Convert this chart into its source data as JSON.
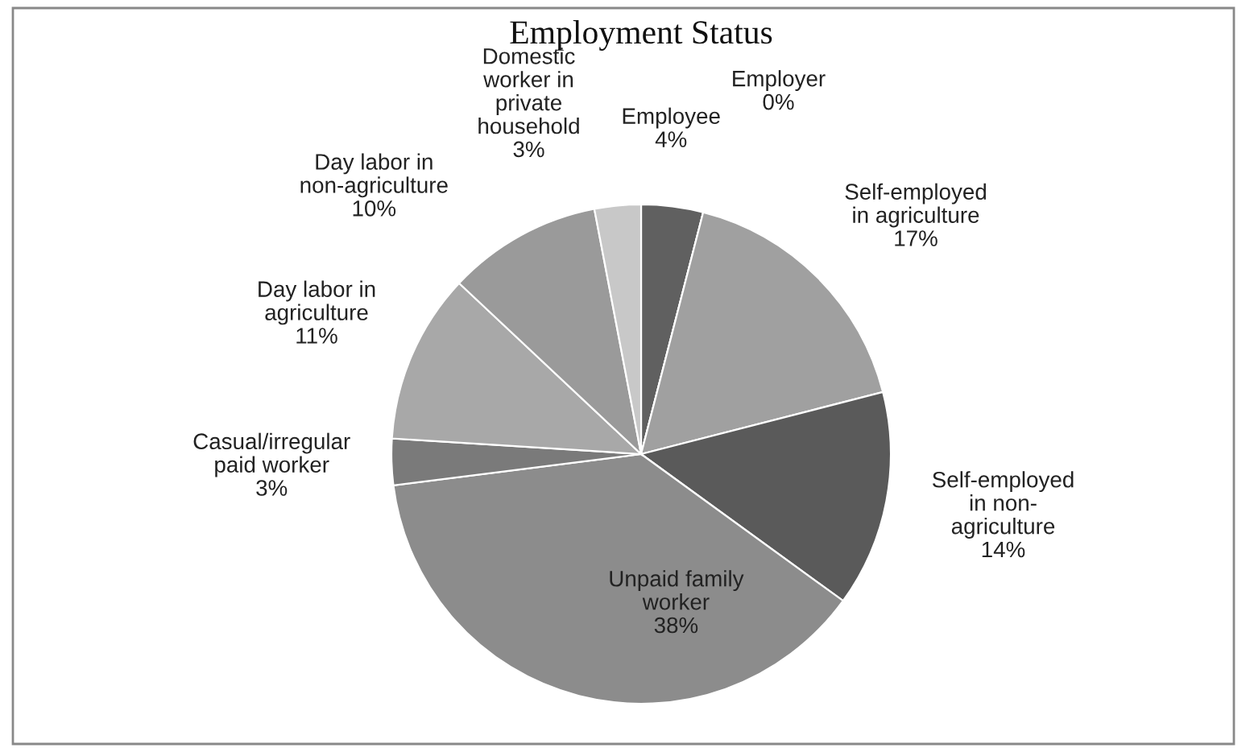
{
  "chart_data": {
    "type": "pie",
    "title": "Employment Status",
    "categories": [
      "Employee",
      "Employer",
      "Self-employed\nin agriculture",
      "Self-employed\nin non-\nagriculture",
      "Unpaid family\nworker",
      "Casual/irregular\npaid worker",
      "Day labor in\nagriculture",
      "Day labor in\nnon-agriculture",
      "Domestic\nworker in\nprivate\nhousehold"
    ],
    "values": [
      4,
      0,
      17,
      14,
      38,
      3,
      11,
      10,
      3
    ],
    "value_labels": [
      "4%",
      "0%",
      "17%",
      "14%",
      "38%",
      "3%",
      "11%",
      "10%",
      "3%"
    ],
    "colors": [
      "#606060",
      "#777777",
      "#a0a0a0",
      "#5a5a5a",
      "#8c8c8c",
      "#7a7a7a",
      "#a8a8a8",
      "#9a9a9a",
      "#c8c8c8"
    ],
    "legend": false
  }
}
